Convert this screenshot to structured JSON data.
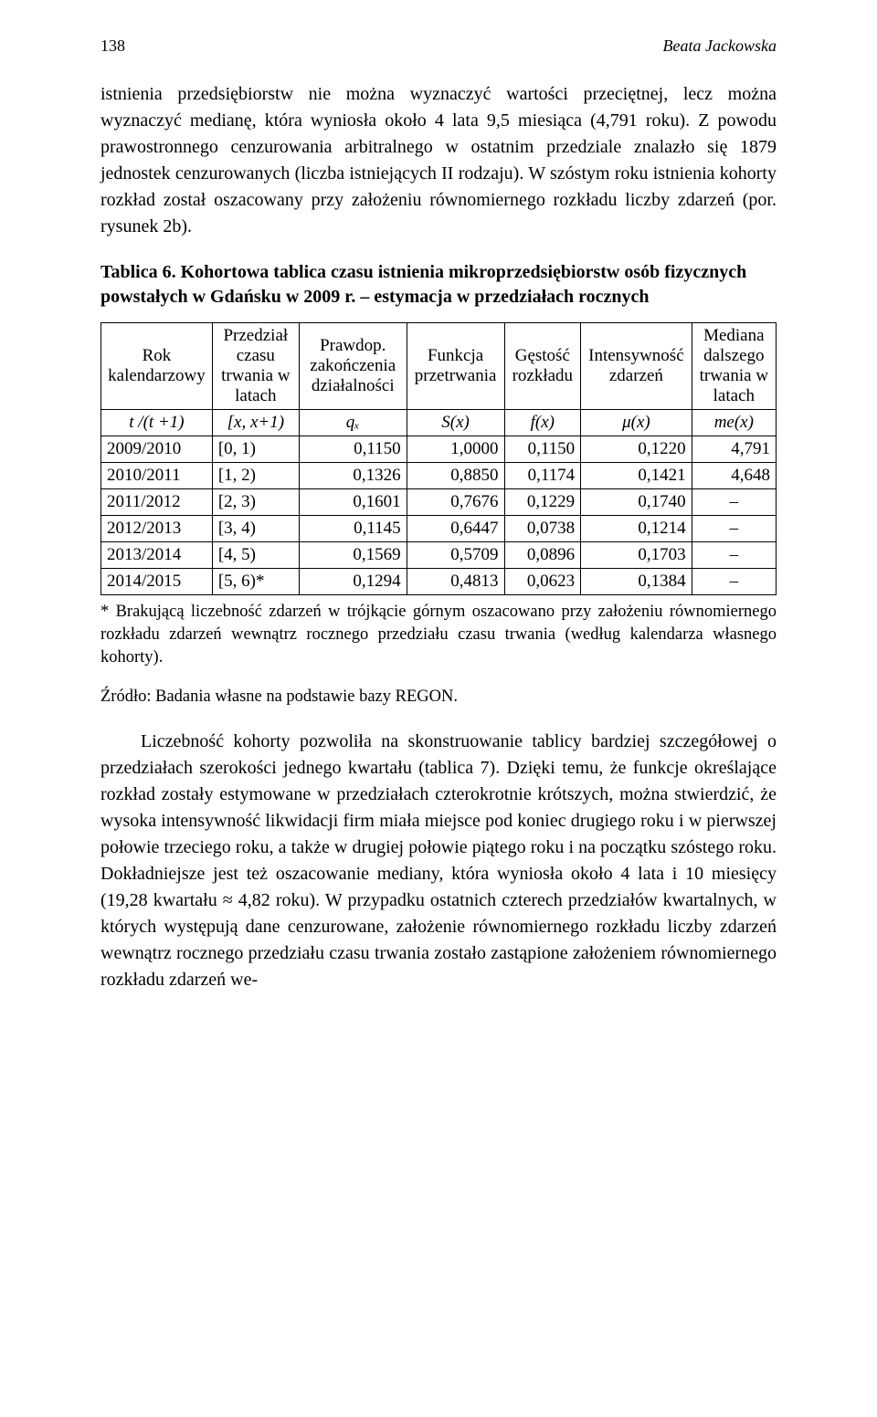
{
  "page_number": "138",
  "author": "Beata Jackowska",
  "para1": "istnienia przedsiębiorstw nie można wyznaczyć wartości przeciętnej, lecz można wyznaczyć medianę, która wyniosła około 4 lata 9,5 miesiąca (4,791 roku). Z powodu prawostronnego cenzurowania arbitralnego w ostatnim przedziale znalazło się 1879 jednostek cenzurowanych (liczba istniejących II rodzaju). W szóstym roku istnienia kohorty rozkład został oszacowany przy założeniu równomiernego rozkładu liczby zdarzeń (por. rysunek 2b).",
  "table_title": "Tablica 6. Kohortowa tablica czasu istnienia mikroprzedsiębiorstw osób fizycznych powstałych w Gdańsku w 2009 r. – estymacja w przedziałach rocznych",
  "table": {
    "headers": [
      "Rok kalendarzowy",
      "Przedział czasu trwania w latach",
      "Prawdop. zakończenia działalności",
      "Funkcja przetrwania",
      "Gęstość rozkładu",
      "Intensywność zdarzeń",
      "Mediana dalszego trwania w latach"
    ],
    "symbol_row": [
      "t /(t +1)",
      "[x, x+1)",
      "qₓ",
      "S(x)",
      "f(x)",
      "μ(x)",
      "me(x)"
    ],
    "rows": [
      [
        "2009/2010",
        "[0, 1)",
        "0,1150",
        "1,0000",
        "0,1150",
        "0,1220",
        "4,791"
      ],
      [
        "2010/2011",
        "[1, 2)",
        "0,1326",
        "0,8850",
        "0,1174",
        "0,1421",
        "4,648"
      ],
      [
        "2011/2012",
        "[2, 3)",
        "0,1601",
        "0,7676",
        "0,1229",
        "0,1740",
        "–"
      ],
      [
        "2012/2013",
        "[3, 4)",
        "0,1145",
        "0,6447",
        "0,0738",
        "0,1214",
        "–"
      ],
      [
        "2013/2014",
        "[4, 5)",
        "0,1569",
        "0,5709",
        "0,0896",
        "0,1703",
        "–"
      ],
      [
        "2014/2015",
        "[5, 6)*",
        "0,1294",
        "0,4813",
        "0,0623",
        "0,1384",
        "–"
      ]
    ],
    "col_align": [
      "left",
      "left",
      "right",
      "right",
      "right",
      "right",
      "right"
    ],
    "border_color": "#000000",
    "font_size_pt": 14
  },
  "footnote1": "* Brakującą liczebność zdarzeń w trójkącie górnym oszacowano przy założeniu równomiernego rozkładu zdarzeń wewnątrz rocznego przedziału czasu trwania (według kalendarza własnego kohorty).",
  "footnote2": "Źródło: Badania własne na podstawie bazy REGON.",
  "para2": "Liczebność kohorty pozwoliła na skonstruowanie tablicy bardziej szczegółowej o przedziałach szerokości jednego kwartału (tablica 7). Dzięki temu, że funkcje określające rozkład zostały estymowane w przedziałach czterokrotnie krótszych, można stwierdzić, że wysoka intensywność likwidacji firm miała miejsce pod koniec drugiego roku i w pierwszej połowie trzeciego roku, a także w drugiej połowie piątego roku i na początku szóstego roku. Dokładniejsze jest też oszacowanie mediany, która wyniosła około 4 lata i 10 miesięcy (19,28 kwartału ≈ 4,82 roku). W przypadku ostatnich czterech przedziałów kwartalnych, w których występują dane cenzurowane, założenie równomiernego rozkładu liczby zdarzeń wewnątrz rocznego przedziału czasu trwania zostało zastąpione założeniem równomiernego rozkładu zdarzeń we-"
}
